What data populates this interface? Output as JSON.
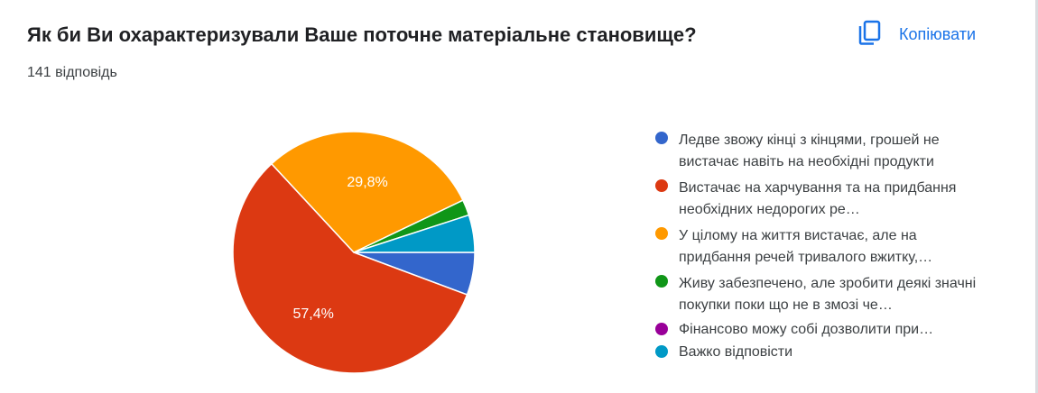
{
  "question_title": "Як би Ви охарактеризували Ваше поточне матеріальне становище?",
  "responses_count": "141 відповідь",
  "copy_button": {
    "label": "Копіювати",
    "icon": "copy-icon"
  },
  "chart_data": {
    "type": "pie",
    "title": "Як би Ви охарактеризували Ваше поточне матеріальне становище?",
    "total_responses": 141,
    "slice_labels": [
      "",
      "57,4%",
      "29,8%",
      "",
      "",
      ""
    ],
    "series": [
      {
        "values": [
          5.7,
          57.4,
          29.8,
          2.1,
          0.0,
          5.0
        ],
        "colors": [
          "#3366cc",
          "#dc3912",
          "#ff9900",
          "#109618",
          "#990099",
          "#0099c6"
        ]
      }
    ],
    "categories": [
      "Ледве звожу кінці з кінцями, грошей не вистачає навіть на необхідні продукти",
      "Вистачає на харчування та на придбання необхідних недорогих ре…",
      "У цілому на життя вистачає, але на придбання речей тривалого вжитку,…",
      "Живу забезпечено, але зробити деякі значні покупки поки що не в змозі че…",
      "Фінансово можу собі дозволити при…",
      "Важко відповісти"
    ],
    "legend_position": "right"
  }
}
